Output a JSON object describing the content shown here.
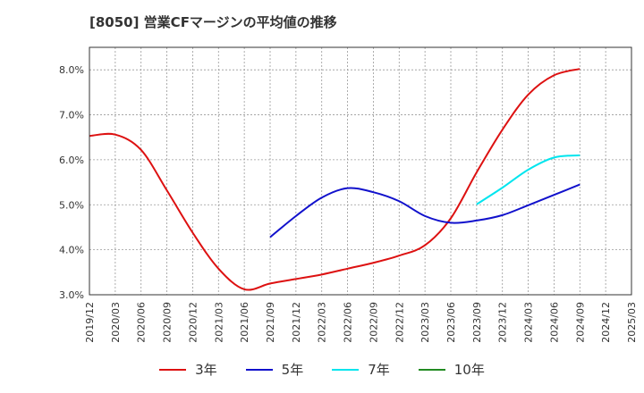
{
  "chart_data": {
    "type": "line",
    "title": "[8050]  営業CFマージンの平均値の推移",
    "xlabel": "",
    "ylabel": "",
    "x_ticks": [
      "2019/12",
      "2020/03",
      "2020/06",
      "2020/09",
      "2020/12",
      "2021/03",
      "2021/06",
      "2021/09",
      "2021/12",
      "2022/03",
      "2022/06",
      "2022/09",
      "2022/12",
      "2023/03",
      "2023/06",
      "2023/09",
      "2023/12",
      "2024/03",
      "2024/06",
      "2024/09",
      "2024/12",
      "2025/03"
    ],
    "y_ticks": [
      "3.0%",
      "4.0%",
      "5.0%",
      "6.0%",
      "7.0%",
      "8.0%"
    ],
    "ylim": [
      3.0,
      8.5
    ],
    "grid": true,
    "legend_position": "bottom",
    "series": [
      {
        "name": "3年",
        "color": "#dd1111",
        "x": [
          "2019/12",
          "2020/03",
          "2020/06",
          "2020/09",
          "2020/12",
          "2021/03",
          "2021/06",
          "2021/09",
          "2021/12",
          "2022/03",
          "2022/06",
          "2022/09",
          "2022/12",
          "2023/03",
          "2023/06",
          "2023/09",
          "2023/12",
          "2024/03",
          "2024/06",
          "2024/09"
        ],
        "values": [
          6.53,
          6.56,
          6.22,
          5.32,
          4.38,
          3.58,
          3.12,
          3.25,
          3.35,
          3.45,
          3.58,
          3.71,
          3.87,
          4.1,
          4.7,
          5.72,
          6.67,
          7.45,
          7.88,
          8.02
        ]
      },
      {
        "name": "5年",
        "color": "#1111cc",
        "x": [
          "2021/09",
          "2021/12",
          "2022/03",
          "2022/06",
          "2022/09",
          "2022/12",
          "2023/03",
          "2023/06",
          "2023/09",
          "2023/12",
          "2024/03",
          "2024/06",
          "2024/09"
        ],
        "values": [
          4.28,
          4.75,
          5.16,
          5.37,
          5.28,
          5.08,
          4.75,
          4.6,
          4.65,
          4.77,
          4.99,
          5.22,
          5.45
        ]
      },
      {
        "name": "7年",
        "color": "#00e5ee",
        "x": [
          "2023/09",
          "2023/12",
          "2024/03",
          "2024/06",
          "2024/09"
        ],
        "values": [
          5.01,
          5.38,
          5.78,
          6.05,
          6.1
        ]
      },
      {
        "name": "10年",
        "color": "#228b22",
        "x": [],
        "values": []
      }
    ]
  }
}
